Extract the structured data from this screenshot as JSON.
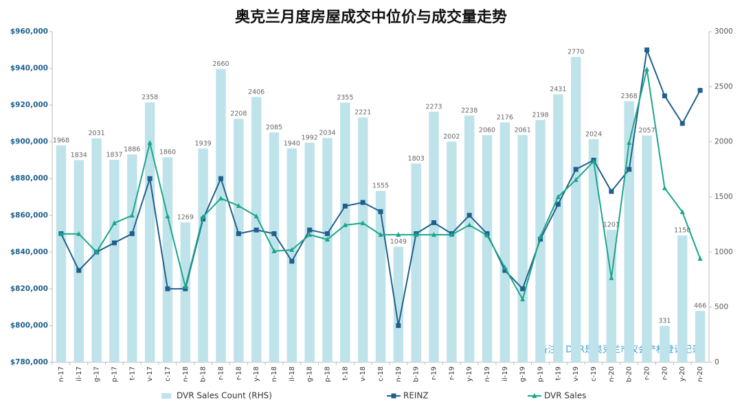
{
  "chart_data": {
    "type": "bar_line",
    "title": "奥克兰月度房屋成交中位价与成交量走势",
    "annotation": "备注：DVR是奥克兰市议会产权登记记录",
    "categories": [
      "n-17",
      "il-17",
      "g-17",
      "p-17",
      "t-17",
      "v-17",
      "c-17",
      "n-18",
      "b-18",
      "r-18",
      "r-18",
      "y-18",
      "n-18",
      "il-18",
      "g-18",
      "p-18",
      "t-18",
      "v-18",
      "c-18",
      "n-19",
      "b-19",
      "r-19",
      "r-19",
      "y-19",
      "n-19",
      "il-19",
      "g-19",
      "p-19",
      "t-19",
      "v-19",
      "c-19",
      "n-20",
      "b-20",
      "r-20",
      "r-20",
      "y-20",
      "n-20"
    ],
    "series": [
      {
        "name": "DVR Sales Count (RHS)",
        "kind": "bar",
        "axis": "y2",
        "color": "#bfe3ea",
        "values": [
          1968,
          1834,
          2031,
          1837,
          1886,
          2358,
          1860,
          1269,
          1939,
          2660,
          2208,
          2406,
          2085,
          1940,
          1992,
          2034,
          2355,
          2221,
          1555,
          1049,
          1803,
          2273,
          2002,
          2238,
          2060,
          2176,
          2061,
          2198,
          2431,
          2770,
          2024,
          1201,
          2368,
          2057,
          331,
          1150,
          466
        ]
      },
      {
        "name": "REINZ",
        "kind": "line",
        "marker": "square",
        "color": "#1f5f8b",
        "values": [
          850000,
          830000,
          840000,
          845000,
          850000,
          880000,
          820000,
          820000,
          858000,
          880000,
          850000,
          852000,
          850000,
          835000,
          852000,
          850000,
          865000,
          867000,
          862000,
          800000,
          850000,
          856000,
          850000,
          860000,
          850000,
          830000,
          820000,
          847000,
          866000,
          885000,
          890000,
          873000,
          885000,
          950000,
          925000,
          910000,
          928000
        ]
      },
      {
        "name": "DVR Sales",
        "kind": "line",
        "axis": "y2",
        "marker": "triangle",
        "color": "#1aa68a",
        "values": [
          1165,
          1165,
          1000,
          1263,
          1332,
          1991,
          1325,
          685,
          1320,
          1487,
          1419,
          1325,
          1008,
          1020,
          1157,
          1114,
          1245,
          1263,
          1157,
          1157,
          1157,
          1157,
          1157,
          1245,
          1151,
          859,
          572,
          1139,
          1500,
          1655,
          1823,
          765,
          1991,
          2657,
          1580,
          1363,
          940
        ]
      }
    ],
    "ylim": [
      780000,
      960000
    ],
    "yticks": [
      {
        "value": 780000,
        "label": "$780,000"
      },
      {
        "value": 800000,
        "label": "$800,000"
      },
      {
        "value": 820000,
        "label": "$820,000"
      },
      {
        "value": 840000,
        "label": "$840,000"
      },
      {
        "value": 860000,
        "label": "$860,000"
      },
      {
        "value": 880000,
        "label": "$880,000"
      },
      {
        "value": 900000,
        "label": "$900,000"
      },
      {
        "value": 920000,
        "label": "$920,000"
      },
      {
        "value": 940000,
        "label": "$940,000"
      },
      {
        "value": 960000,
        "label": "$960,000"
      }
    ],
    "y2lim": [
      0,
      3000
    ],
    "y2ticks": [
      0,
      500,
      1000,
      1500,
      2000,
      2500,
      3000
    ],
    "grid": false,
    "legend": "bottom"
  }
}
